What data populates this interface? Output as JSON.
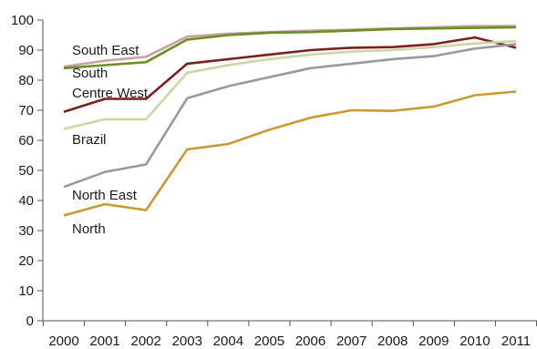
{
  "chart_data": {
    "type": "line",
    "title": "",
    "xlabel": "",
    "ylabel": "",
    "x": [
      "2000",
      "2001",
      "2002",
      "2003",
      "2004",
      "2005",
      "2006",
      "2007",
      "2008",
      "2009",
      "2010",
      "2011"
    ],
    "ylim": [
      0,
      100
    ],
    "yticks": [
      0,
      10,
      20,
      30,
      40,
      50,
      60,
      70,
      80,
      90,
      100
    ],
    "grid": false,
    "legend": "inline labels",
    "series": [
      {
        "name": "South East",
        "color": "#c9a3a0",
        "values": [
          84.5,
          86.5,
          87.8,
          94.5,
          95.5,
          96.0,
          96.5,
          96.8,
          97.2,
          97.6,
          98.0,
          98.0
        ]
      },
      {
        "name": "South",
        "color": "#6b8e23",
        "values": [
          84.0,
          85.0,
          86.0,
          93.5,
          95.0,
          95.8,
          96.0,
          96.5,
          97.0,
          97.2,
          97.4,
          97.6
        ]
      },
      {
        "name": "Centre West",
        "color": "#7b1f1f",
        "values": [
          69.5,
          73.8,
          73.8,
          85.5,
          87.0,
          88.5,
          90.0,
          90.8,
          91.0,
          92.0,
          94.2,
          90.8
        ]
      },
      {
        "name": "Brazil",
        "color": "#c8d8a0",
        "values": [
          63.8,
          67.0,
          67.0,
          82.5,
          85.0,
          87.0,
          88.5,
          89.5,
          90.0,
          91.0,
          92.2,
          93.0
        ]
      },
      {
        "name": "North East",
        "color": "#9a9a9a",
        "values": [
          44.5,
          49.5,
          52.0,
          74.0,
          78.0,
          81.0,
          84.0,
          85.5,
          87.0,
          88.0,
          90.5,
          92.0
        ]
      },
      {
        "name": "North",
        "color": "#c89a30",
        "values": [
          35.0,
          38.8,
          36.8,
          57.0,
          58.8,
          63.5,
          67.5,
          70.0,
          69.8,
          71.2,
          75.0,
          76.2
        ]
      }
    ]
  }
}
